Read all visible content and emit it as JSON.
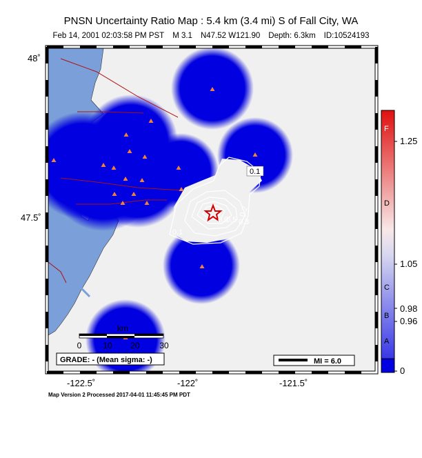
{
  "header": {
    "title": "PNSN Uncertainty Ratio Map : 5.4 km (3.4 mi) S of Fall City, WA",
    "date": "Feb 14, 2001 02:03:58 PM PST",
    "magnitude": "M 3.1",
    "location": "N47.52 W121.90",
    "depth": "Depth: 6.3km",
    "event_id": "ID:10524193"
  },
  "axes": {
    "lat_ticks": [
      "48˚",
      "47.5˚"
    ],
    "lon_ticks": [
      "-122.5˚",
      "-122˚",
      "-121.5˚"
    ]
  },
  "scale_bar": {
    "unit": "km",
    "ticks": [
      "0",
      "10",
      "20",
      "30"
    ]
  },
  "grade_box": "GRADE: - (Mean sigma: -)",
  "mi_legend": "MI = 6.0",
  "colorbar": {
    "values": [
      "1.25",
      "1.05",
      "0.98",
      "0.96",
      "0"
    ],
    "grades": [
      "F",
      "D",
      "C",
      "B",
      "A"
    ]
  },
  "contours": {
    "labels": [
      "0.1",
      "0.1",
      "0.2",
      "0.3",
      "0.9",
      "0.5"
    ]
  },
  "footer": "Map Version 2 Processed 2017-04-01 11:45:45 PM PDT",
  "colors": {
    "water": "#7b9fd9",
    "land": "#f0f0f0",
    "uncertainty_blue": "#0000e0",
    "station": "#f08040",
    "fault": "#b01010",
    "epicenter": "#d00000"
  }
}
